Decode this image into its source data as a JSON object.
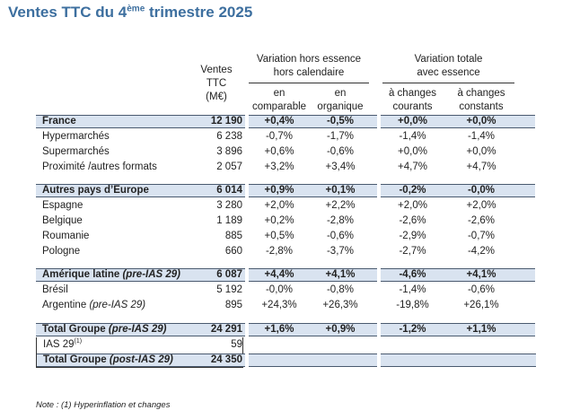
{
  "title_main": "Ventes TTC du 4",
  "title_sup": "ème",
  "title_end": " trimestre 2025",
  "header": {
    "sales_l1": "Ventes",
    "sales_l2": "TTC",
    "sales_l3": "(M€)",
    "grp1_l1": "Variation hors essence",
    "grp1_l2": "hors calendaire",
    "grp2_l1": "Variation totale",
    "grp2_l2": "avec essence",
    "c2_l1": "en",
    "c2_l2": "comparable",
    "c3_l1": "en",
    "c3_l2": "organique",
    "c4_l1": "à changes",
    "c4_l2": "courants",
    "c5_l1": "à changes",
    "c5_l2": "constants"
  },
  "rows": {
    "france": {
      "label": "France",
      "sales": "12 190",
      "comp": "+0,4%",
      "org": "-0,5%",
      "cur": "+0,0%",
      "const": "+0,0%"
    },
    "hyper": {
      "label": "Hypermarchés",
      "sales": "6 238",
      "comp": "-0,7%",
      "org": "-1,7%",
      "cur": "-1,4%",
      "const": "-1,4%"
    },
    "super": {
      "label": "Supermarchés",
      "sales": "3 896",
      "comp": "+0,6%",
      "org": "-0,6%",
      "cur": "+0,0%",
      "const": "+0,0%"
    },
    "prox": {
      "label": "Proximité /autres formats",
      "sales": "2 057",
      "comp": "+3,2%",
      "org": "+3,4%",
      "cur": "+4,7%",
      "const": "+4,7%"
    },
    "europe": {
      "label": "Autres pays d’Europe",
      "sales": "6 014",
      "comp": "+0,9%",
      "org": "+0,1%",
      "cur": "-0,2%",
      "const": "-0,0%"
    },
    "espagne": {
      "label": "Espagne",
      "sales": "3 280",
      "comp": "+2,0%",
      "org": "+2,2%",
      "cur": "+2,0%",
      "const": "+2,0%"
    },
    "belgique": {
      "label": "Belgique",
      "sales": "1 189",
      "comp": "+0,2%",
      "org": "-2,8%",
      "cur": "-2,6%",
      "const": "-2,6%"
    },
    "roumanie": {
      "label": "Roumanie",
      "sales": "885",
      "comp": "+0,5%",
      "org": "-0,6%",
      "cur": "-2,9%",
      "const": "-0,7%"
    },
    "pologne": {
      "label": "Pologne",
      "sales": "660",
      "comp": "-2,8%",
      "org": "-3,7%",
      "cur": "-2,7%",
      "const": "-4,2%"
    },
    "amlat": {
      "label": "Amérique latine ",
      "label_it": "(pre-IAS 29)",
      "sales": "6 087",
      "comp": "+4,4%",
      "org": "+4,1%",
      "cur": "-4,6%",
      "const": "+4,1%"
    },
    "bresil": {
      "label": "Brésil",
      "sales": "5 192",
      "comp": "-0,0%",
      "org": "-0,8%",
      "cur": "-1,4%",
      "const": "-0,6%"
    },
    "argentine": {
      "label": "Argentine ",
      "label_it": "(pre-IAS 29)",
      "sales": "895",
      "comp": "+24,3%",
      "org": "+26,3%",
      "cur": "-19,8%",
      "const": "+26,1%"
    },
    "total_pre": {
      "label": "Total Groupe ",
      "label_it": "(pre-IAS 29)",
      "sales": "24 291",
      "comp": "+1,6%",
      "org": "+0,9%",
      "cur": "-1,2%",
      "const": "+1,1%"
    },
    "ias": {
      "label": "IAS 29",
      "label_sup": "(1)",
      "sales": "59"
    },
    "total_post": {
      "label": "Total Groupe ",
      "label_it": "(post-IAS 29)",
      "sales": "24 350"
    }
  },
  "note": "Note : (1) Hyperinflation et changes"
}
